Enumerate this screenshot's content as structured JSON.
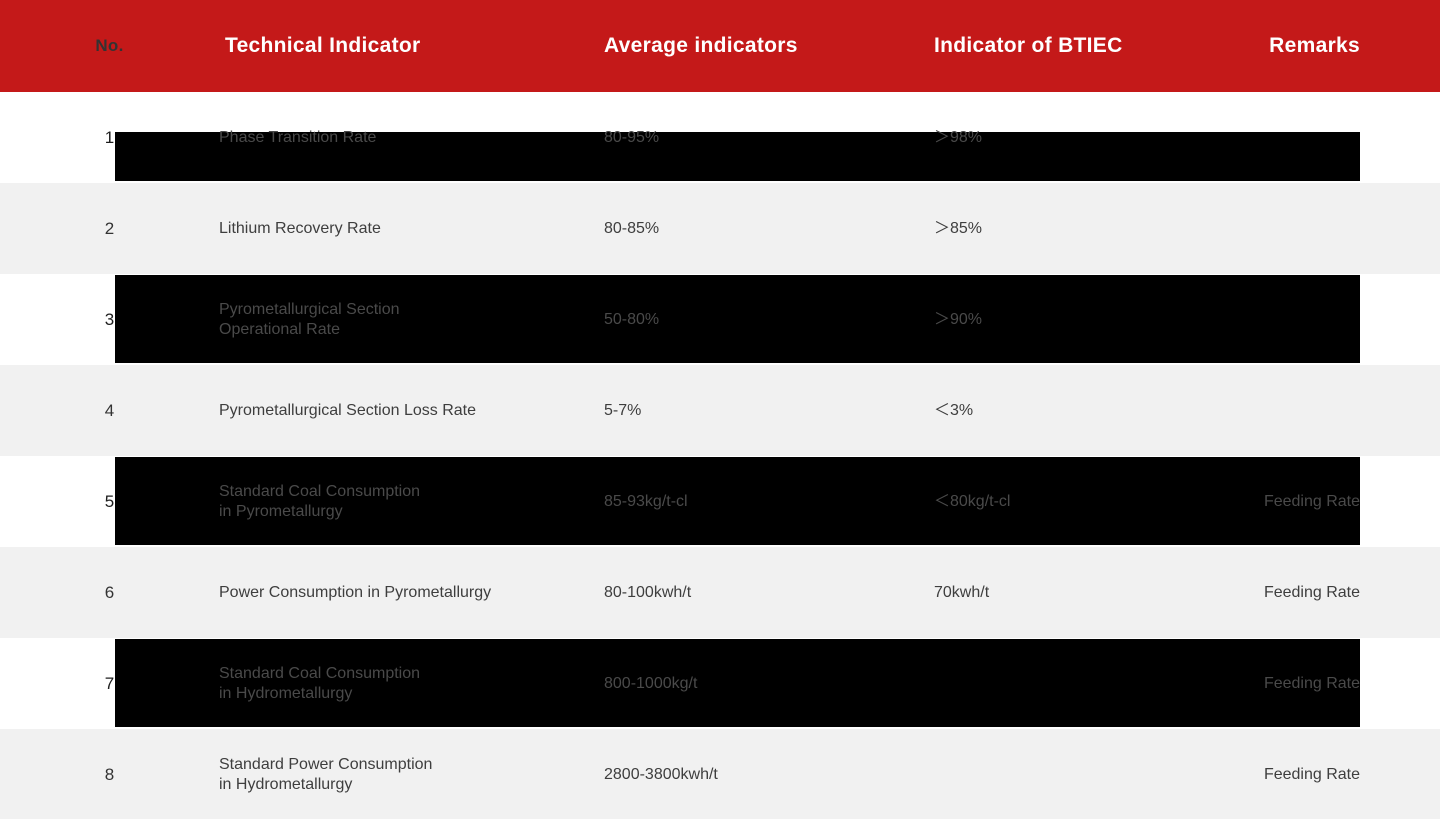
{
  "colors": {
    "header_bg": "#c41919",
    "header_text": "#ffffff",
    "row_bg": "#ffffff",
    "row_alt_bg": "#f1f1f1",
    "highlight_overlay_bg": "#000000",
    "body_text": "#3e3e3e",
    "overlay_text": "#4a4a4a"
  },
  "header": {
    "columns": [
      {
        "label": "No."
      },
      {
        "label": "Technical Indicator"
      },
      {
        "label": "Average indicators"
      },
      {
        "label": "Indicator of BTIEC"
      },
      {
        "label": "Remarks"
      }
    ]
  },
  "table": {
    "rows": [
      {
        "no": "1",
        "indicator": [
          "Phase Transition Rate"
        ],
        "average": "80-95%",
        "btiec": "＞98%",
        "remarks": "",
        "highlight": "partial"
      },
      {
        "no": "2",
        "indicator": [
          "Lithium Recovery Rate"
        ],
        "average": "80-85%",
        "btiec": "＞85%",
        "remarks": "",
        "highlight": "none"
      },
      {
        "no": "3",
        "indicator": [
          "Pyrometallurgical Section",
          "Operational Rate"
        ],
        "average": "50-80%",
        "btiec": "＞90%",
        "remarks": "",
        "highlight": "full"
      },
      {
        "no": "4",
        "indicator": [
          "Pyrometallurgical Section Loss Rate"
        ],
        "average": "5-7%",
        "btiec": "＜3%",
        "remarks": "",
        "highlight": "none"
      },
      {
        "no": "5",
        "indicator": [
          "Standard Coal Consumption",
          "in Pyrometallurgy"
        ],
        "average": "85-93kg/t-cl",
        "btiec": "＜80kg/t-cl",
        "remarks": "Feeding Rate",
        "highlight": "full"
      },
      {
        "no": "6",
        "indicator": [
          "Power Consumption in Pyrometallurgy"
        ],
        "average": "80-100kwh/t",
        "btiec": "70kwh/t",
        "remarks": "Feeding Rate",
        "highlight": "none"
      },
      {
        "no": "7",
        "indicator": [
          "Standard Coal Consumption",
          "in Hydrometallurgy"
        ],
        "average": "800-1000kg/t",
        "btiec": "",
        "remarks": "Feeding Rate",
        "highlight": "full"
      },
      {
        "no": "8",
        "indicator": [
          "Standard Power Consumption",
          "in Hydrometallurgy"
        ],
        "average": "2800-3800kwh/t",
        "btiec": "",
        "remarks": "Feeding Rate",
        "highlight": "none"
      }
    ]
  },
  "chart_data": {
    "type": "table",
    "title": "Technical indicators vs BTIEC indicators",
    "columns": [
      "No.",
      "Technical Indicator",
      "Average indicators",
      "Indicator of BTIEC",
      "Remarks"
    ],
    "rows": [
      [
        "1",
        "Phase Transition Rate",
        "80-95%",
        "＞98%",
        ""
      ],
      [
        "2",
        "Lithium Recovery Rate",
        "80-85%",
        "＞85%",
        ""
      ],
      [
        "3",
        "Pyrometallurgical Section Operational Rate",
        "50-80%",
        "＞90%",
        ""
      ],
      [
        "4",
        "Pyrometallurgical Section Loss Rate",
        "5-7%",
        "＜3%",
        ""
      ],
      [
        "5",
        "Standard Coal Consumption in Pyrometallurgy",
        "85-93kg/t-cl",
        "＜80kg/t-cl",
        "Feeding Rate"
      ],
      [
        "6",
        "Power Consumption in Pyrometallurgy",
        "80-100kwh/t",
        "70kwh/t",
        "Feeding Rate"
      ],
      [
        "7",
        "Standard Coal Consumption in Hydrometallurgy",
        "800-1000kg/t",
        "",
        "Feeding Rate"
      ],
      [
        "8",
        "Standard Power Consumption in Hydrometallurgy",
        "2800-3800kwh/t",
        "",
        "Feeding Rate"
      ]
    ]
  }
}
